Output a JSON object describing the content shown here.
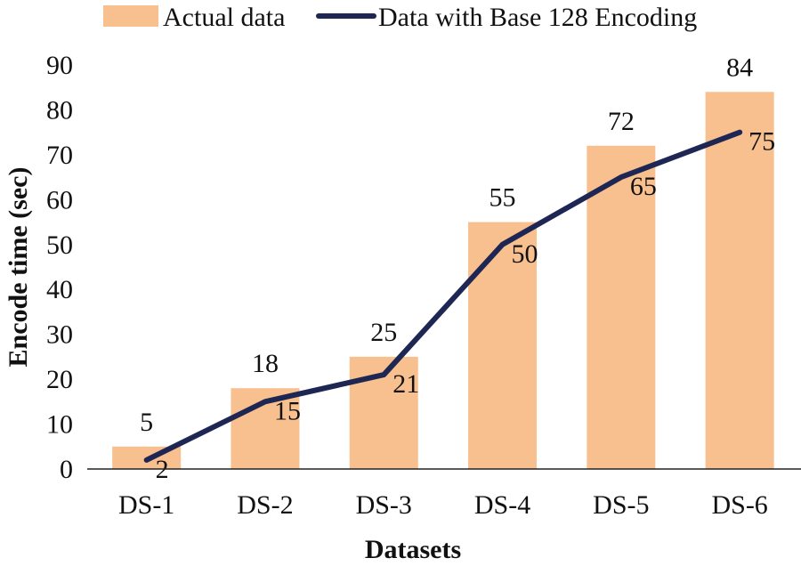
{
  "chart_data": {
    "type": "bar+line",
    "xlabel": "Datasets",
    "ylabel": "Encode time (sec)",
    "ylim": [
      0,
      90
    ],
    "yticks": [
      0,
      10,
      20,
      30,
      40,
      50,
      60,
      70,
      80,
      90
    ],
    "categories": [
      "DS-1",
      "DS-2",
      "DS-3",
      "DS-4",
      "DS-5",
      "DS-6"
    ],
    "series": [
      {
        "name": "Actual data",
        "type": "bar",
        "values": [
          5,
          18,
          25,
          55,
          72,
          84
        ],
        "color": "#f8bf8f"
      },
      {
        "name": "Data with Base 128 Encoding",
        "type": "line",
        "values": [
          2,
          15,
          21,
          50,
          65,
          75
        ],
        "color": "#1e2654"
      }
    ],
    "legend_position": "top",
    "grid": false
  }
}
